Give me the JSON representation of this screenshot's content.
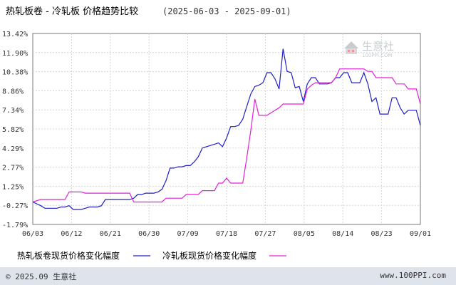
{
  "header": {
    "title": "热轧板卷 - 冷轧板 价格趋势比较",
    "date_range": "(2025-06-03 - 2025-09-01)"
  },
  "watermark": {
    "text": "生意社",
    "url": "100PPI.COM"
  },
  "footer": {
    "copyright": "© 2025.09 生意社",
    "website": "www.100PPI.com"
  },
  "colors": {
    "series1": "#1f1fc8",
    "series2": "#e020d8",
    "grid": "#d6d6d6",
    "axis": "#555555",
    "background_band": "#dfe3ec"
  },
  "chart_data": {
    "type": "line",
    "xlabel": "",
    "ylabel": "",
    "ylim": [
      -1.79,
      13.42
    ],
    "yticks": [
      "13.42%",
      "11.90%",
      "10.38%",
      "8.86%",
      "7.34%",
      "5.82%",
      "4.29%",
      "2.77%",
      "1.25%",
      "-0.27%",
      "-1.79%"
    ],
    "xticks": [
      "06/03",
      "06/12",
      "06/21",
      "06/30",
      "07/09",
      "07/18",
      "07/27",
      "08/05",
      "08/14",
      "08/23",
      "09/01"
    ],
    "grid": true,
    "legend_placement": "bottom",
    "series": [
      {
        "name": "热轧板卷现货价格变化幅度",
        "color": "#1f1fc8",
        "points": [
          [
            0,
            0.0
          ],
          [
            2,
            -0.3
          ],
          [
            3,
            -0.5
          ],
          [
            4,
            -0.5
          ],
          [
            5,
            -0.5
          ],
          [
            6,
            -0.5
          ],
          [
            7,
            -0.4
          ],
          [
            8,
            -0.4
          ],
          [
            9,
            -0.3
          ],
          [
            10,
            -0.6
          ],
          [
            11,
            -0.6
          ],
          [
            12,
            -0.6
          ],
          [
            13,
            -0.5
          ],
          [
            14,
            -0.4
          ],
          [
            15,
            -0.4
          ],
          [
            16,
            -0.4
          ],
          [
            17,
            -0.3
          ],
          [
            18,
            0.2
          ],
          [
            19,
            0.2
          ],
          [
            20,
            0.2
          ],
          [
            21,
            0.2
          ],
          [
            22,
            0.2
          ],
          [
            23,
            0.2
          ],
          [
            24,
            0.2
          ],
          [
            25,
            0.3
          ],
          [
            26,
            0.6
          ],
          [
            27,
            0.6
          ],
          [
            28,
            0.7
          ],
          [
            29,
            0.7
          ],
          [
            30,
            0.7
          ],
          [
            31,
            0.8
          ],
          [
            32,
            1.0
          ],
          [
            33,
            1.7
          ],
          [
            34,
            2.7
          ],
          [
            35,
            2.7
          ],
          [
            36,
            2.8
          ],
          [
            37,
            2.8
          ],
          [
            38,
            2.9
          ],
          [
            39,
            2.9
          ],
          [
            40,
            3.2
          ],
          [
            41,
            3.6
          ],
          [
            42,
            4.3
          ],
          [
            43,
            4.4
          ],
          [
            44,
            4.5
          ],
          [
            45,
            4.6
          ],
          [
            46,
            4.7
          ],
          [
            47,
            4.4
          ],
          [
            48,
            5.1
          ],
          [
            49,
            6.0
          ],
          [
            50,
            6.0
          ],
          [
            51,
            6.1
          ],
          [
            52,
            6.6
          ],
          [
            53,
            7.6
          ],
          [
            54,
            8.6
          ],
          [
            55,
            9.2
          ],
          [
            56,
            9.3
          ],
          [
            57,
            9.5
          ],
          [
            58,
            10.3
          ],
          [
            59,
            10.3
          ],
          [
            60,
            9.8
          ],
          [
            61,
            9.0
          ],
          [
            62,
            12.2
          ],
          [
            63,
            10.4
          ],
          [
            64,
            10.3
          ],
          [
            65,
            9.1
          ],
          [
            66,
            9.2
          ],
          [
            67,
            8.0
          ],
          [
            68,
            9.4
          ],
          [
            69,
            9.9
          ],
          [
            70,
            9.9
          ],
          [
            71,
            9.4
          ],
          [
            72,
            9.4
          ],
          [
            73,
            9.4
          ],
          [
            74,
            9.5
          ],
          [
            75,
            9.9
          ],
          [
            76,
            9.9
          ],
          [
            77,
            10.3
          ],
          [
            78,
            10.3
          ],
          [
            79,
            9.5
          ],
          [
            80,
            9.5
          ],
          [
            81,
            9.5
          ],
          [
            82,
            10.3
          ],
          [
            83,
            9.4
          ],
          [
            84,
            8.0
          ],
          [
            85,
            8.3
          ],
          [
            86,
            7.0
          ],
          [
            87,
            7.0
          ],
          [
            88,
            7.0
          ],
          [
            89,
            8.3
          ],
          [
            90,
            8.3
          ],
          [
            91,
            7.5
          ],
          [
            92,
            7.0
          ],
          [
            93,
            7.3
          ],
          [
            94,
            7.3
          ],
          [
            95,
            7.3
          ],
          [
            96,
            6.1
          ]
        ]
      },
      {
        "name": "冷轧板现货价格变化幅度",
        "color": "#e020d8",
        "points": [
          [
            0,
            0.0
          ],
          [
            2,
            0.2
          ],
          [
            3,
            0.2
          ],
          [
            4,
            0.2
          ],
          [
            5,
            0.2
          ],
          [
            6,
            0.2
          ],
          [
            7,
            0.2
          ],
          [
            8,
            0.2
          ],
          [
            9,
            0.8
          ],
          [
            10,
            0.8
          ],
          [
            11,
            0.8
          ],
          [
            12,
            0.8
          ],
          [
            13,
            0.7
          ],
          [
            14,
            0.7
          ],
          [
            15,
            0.7
          ],
          [
            16,
            0.7
          ],
          [
            17,
            0.7
          ],
          [
            18,
            0.7
          ],
          [
            19,
            0.7
          ],
          [
            20,
            0.7
          ],
          [
            21,
            0.7
          ],
          [
            22,
            0.7
          ],
          [
            23,
            0.7
          ],
          [
            24,
            0.7
          ],
          [
            25,
            0.0
          ],
          [
            26,
            0.0
          ],
          [
            27,
            0.0
          ],
          [
            28,
            0.0
          ],
          [
            29,
            0.0
          ],
          [
            30,
            0.0
          ],
          [
            31,
            0.0
          ],
          [
            32,
            0.0
          ],
          [
            33,
            0.3
          ],
          [
            34,
            0.3
          ],
          [
            35,
            0.3
          ],
          [
            36,
            0.3
          ],
          [
            37,
            0.3
          ],
          [
            38,
            0.6
          ],
          [
            39,
            0.6
          ],
          [
            40,
            0.6
          ],
          [
            41,
            0.6
          ],
          [
            42,
            0.9
          ],
          [
            43,
            0.9
          ],
          [
            44,
            0.9
          ],
          [
            45,
            0.9
          ],
          [
            46,
            1.5
          ],
          [
            47,
            1.5
          ],
          [
            48,
            1.9
          ],
          [
            49,
            1.5
          ],
          [
            50,
            1.5
          ],
          [
            51,
            1.5
          ],
          [
            52,
            1.5
          ],
          [
            53,
            3.5
          ],
          [
            54,
            5.7
          ],
          [
            55,
            8.2
          ],
          [
            56,
            6.9
          ],
          [
            57,
            6.9
          ],
          [
            58,
            6.9
          ],
          [
            59,
            7.1
          ],
          [
            60,
            7.3
          ],
          [
            61,
            7.5
          ],
          [
            62,
            7.8
          ],
          [
            63,
            7.8
          ],
          [
            64,
            7.8
          ],
          [
            65,
            7.8
          ],
          [
            66,
            7.8
          ],
          [
            67,
            7.8
          ],
          [
            68,
            9.0
          ],
          [
            69,
            9.3
          ],
          [
            70,
            9.5
          ],
          [
            71,
            9.5
          ],
          [
            72,
            9.5
          ],
          [
            73,
            9.5
          ],
          [
            74,
            9.5
          ],
          [
            75,
            9.9
          ],
          [
            76,
            10.6
          ],
          [
            77,
            10.6
          ],
          [
            78,
            10.6
          ],
          [
            79,
            10.6
          ],
          [
            80,
            10.6
          ],
          [
            81,
            10.6
          ],
          [
            82,
            10.6
          ],
          [
            83,
            10.4
          ],
          [
            84,
            10.4
          ],
          [
            85,
            9.9
          ],
          [
            86,
            9.9
          ],
          [
            87,
            9.9
          ],
          [
            88,
            9.9
          ],
          [
            89,
            9.9
          ],
          [
            90,
            9.4
          ],
          [
            91,
            9.4
          ],
          [
            92,
            9.4
          ],
          [
            93,
            9.0
          ],
          [
            94,
            9.0
          ],
          [
            95,
            9.0
          ],
          [
            96,
            7.8
          ]
        ]
      }
    ]
  }
}
